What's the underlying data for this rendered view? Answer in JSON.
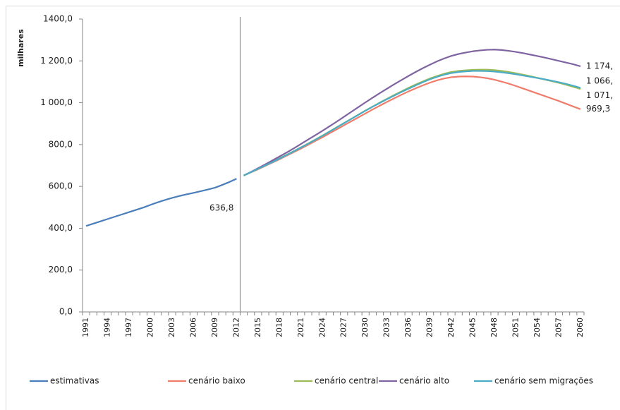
{
  "chart_data": {
    "type": "line",
    "y_label": "milhares",
    "categories": [
      1991,
      null,
      null,
      1994,
      null,
      null,
      1997,
      null,
      null,
      2000,
      null,
      null,
      2003,
      null,
      null,
      2006,
      null,
      null,
      2009,
      null,
      null,
      2012,
      null,
      null,
      2015,
      null,
      null,
      2018,
      null,
      null,
      2021,
      null,
      null,
      2024,
      null,
      null,
      2027,
      null,
      null,
      2030,
      null,
      null,
      2033,
      null,
      null,
      2036,
      null,
      null,
      2039,
      null,
      null,
      2042,
      null,
      null,
      2045,
      null,
      null,
      2048,
      null,
      null,
      2051,
      null,
      null,
      2054,
      null,
      null,
      2057,
      null,
      null,
      2060
    ],
    "ylim": [
      0,
      1400
    ],
    "yticks": [
      {
        "value": 0,
        "label": "0,0"
      },
      {
        "value": 200,
        "label": "200,0"
      },
      {
        "value": 400,
        "label": "400,0"
      },
      {
        "value": 600,
        "label": "600,0"
      },
      {
        "value": 800,
        "label": "800,0"
      },
      {
        "value": 1000,
        "label": "1 000,0"
      },
      {
        "value": 1200,
        "label": "1 200,0"
      },
      {
        "value": 1400,
        "label": "1400,0"
      }
    ],
    "legend": "bottom",
    "series": [
      {
        "name": "estimativas",
        "color": "#4a7ebb",
        "values": [
          411,
          422,
          433,
          444,
          455,
          466,
          477,
          488,
          499,
          512,
          524,
          535,
          545,
          554,
          562,
          569,
          577,
          585,
          594,
          607,
          621,
          636.8,
          null,
          null,
          null,
          null,
          null,
          null,
          null,
          null,
          null,
          null,
          null,
          null,
          null,
          null,
          null,
          null,
          null,
          null,
          null,
          null,
          null,
          null,
          null,
          null,
          null,
          null,
          null,
          null,
          null,
          null,
          null,
          null,
          null,
          null,
          null,
          null,
          null,
          null,
          null,
          null,
          null,
          null,
          null,
          null,
          null,
          null,
          null,
          null
        ],
        "value_labels": [
          null,
          null,
          null,
          null,
          null,
          null,
          null,
          null,
          null,
          null,
          null,
          null,
          null,
          null,
          null,
          null,
          null,
          null,
          null,
          null,
          null,
          "636,8",
          null,
          null,
          null,
          null,
          null,
          null,
          null,
          null,
          null,
          null,
          null,
          null,
          null,
          null,
          null,
          null,
          null,
          null,
          null,
          null,
          null,
          null,
          null,
          null,
          null,
          null,
          null,
          null,
          null,
          null,
          null,
          null,
          null,
          null,
          null,
          null,
          null,
          null,
          null,
          null,
          null,
          null,
          null,
          null,
          null,
          null,
          null,
          null
        ]
      },
      {
        "name": "cenário baixo",
        "color": "#f07c6c",
        "values": [
          null,
          null,
          null,
          null,
          null,
          null,
          null,
          null,
          null,
          null,
          null,
          null,
          null,
          null,
          null,
          null,
          null,
          null,
          null,
          null,
          null,
          null,
          652,
          667,
          682,
          698,
          714,
          730,
          747,
          764,
          781,
          799,
          817,
          835,
          854,
          873,
          892,
          911,
          930,
          949,
          968,
          986,
          1004,
          1021,
          1038,
          1054,
          1069,
          1083,
          1096,
          1107,
          1116,
          1122,
          1125,
          1126,
          1125,
          1122,
          1117,
          1110,
          1101,
          1091,
          1080,
          1068,
          1056,
          1044,
          1032,
          1020,
          1008,
          995,
          982,
          969.3
        ],
        "value_labels": [
          null,
          null,
          null,
          null,
          null,
          null,
          null,
          null,
          null,
          null,
          null,
          null,
          null,
          null,
          null,
          null,
          null,
          null,
          null,
          null,
          null,
          null,
          null,
          null,
          null,
          null,
          null,
          null,
          null,
          null,
          null,
          null,
          null,
          null,
          null,
          null,
          null,
          null,
          null,
          null,
          null,
          null,
          null,
          null,
          null,
          null,
          null,
          null,
          null,
          null,
          null,
          null,
          null,
          null,
          null,
          null,
          null,
          null,
          null,
          null,
          null,
          null,
          null,
          null,
          null,
          null,
          null,
          null,
          null,
          "969,3"
        ]
      },
      {
        "name": "cenário central",
        "color": "#9bbb59",
        "values": [
          null,
          null,
          null,
          null,
          null,
          null,
          null,
          null,
          null,
          null,
          null,
          null,
          null,
          null,
          null,
          null,
          null,
          null,
          null,
          null,
          null,
          null,
          652,
          668,
          684,
          700,
          717,
          734,
          751,
          769,
          787,
          805,
          824,
          843,
          863,
          883,
          903,
          923,
          943,
          963,
          982,
          1001,
          1019,
          1037,
          1054,
          1071,
          1087,
          1102,
          1116,
          1128,
          1139,
          1147,
          1152,
          1155,
          1157,
          1158,
          1158,
          1156,
          1152,
          1147,
          1141,
          1134,
          1127,
          1119,
          1111,
          1103,
          1095,
          1086,
          1076,
          1066
        ],
        "value_labels": [
          null,
          null,
          null,
          null,
          null,
          null,
          null,
          null,
          null,
          null,
          null,
          null,
          null,
          null,
          null,
          null,
          null,
          null,
          null,
          null,
          null,
          null,
          null,
          null,
          null,
          null,
          null,
          null,
          null,
          null,
          null,
          null,
          null,
          null,
          null,
          null,
          null,
          null,
          null,
          null,
          null,
          null,
          null,
          null,
          null,
          null,
          null,
          null,
          null,
          null,
          null,
          null,
          null,
          null,
          null,
          null,
          null,
          null,
          null,
          null,
          null,
          null,
          null,
          null,
          null,
          null,
          null,
          null,
          null,
          "1 066,"
        ]
      },
      {
        "name": "cenário alto",
        "color": "#8064a2",
        "values": [
          null,
          null,
          null,
          null,
          null,
          null,
          null,
          null,
          null,
          null,
          null,
          null,
          null,
          null,
          null,
          null,
          null,
          null,
          null,
          null,
          null,
          null,
          652,
          669,
          687,
          705,
          724,
          743,
          762,
          782,
          803,
          824,
          845,
          866,
          888,
          910,
          933,
          956,
          979,
          1002,
          1024,
          1046,
          1067,
          1088,
          1108,
          1128,
          1147,
          1165,
          1182,
          1198,
          1212,
          1224,
          1233,
          1240,
          1246,
          1250,
          1253,
          1254,
          1252,
          1248,
          1243,
          1237,
          1230,
          1223,
          1216,
          1208,
          1200,
          1192,
          1184,
          1174
        ],
        "value_labels": [
          null,
          null,
          null,
          null,
          null,
          null,
          null,
          null,
          null,
          null,
          null,
          null,
          null,
          null,
          null,
          null,
          null,
          null,
          null,
          null,
          null,
          null,
          null,
          null,
          null,
          null,
          null,
          null,
          null,
          null,
          null,
          null,
          null,
          null,
          null,
          null,
          null,
          null,
          null,
          null,
          null,
          null,
          null,
          null,
          null,
          null,
          null,
          null,
          null,
          null,
          null,
          null,
          null,
          null,
          null,
          null,
          null,
          null,
          null,
          null,
          null,
          null,
          null,
          null,
          null,
          null,
          null,
          null,
          null,
          "1 174,"
        ]
      },
      {
        "name": "cenário sem migrações",
        "color": "#4bacc6",
        "values": [
          null,
          null,
          null,
          null,
          null,
          null,
          null,
          null,
          null,
          null,
          null,
          null,
          null,
          null,
          null,
          null,
          null,
          null,
          null,
          null,
          null,
          null,
          652,
          668,
          684,
          700,
          716,
          733,
          750,
          768,
          786,
          804,
          823,
          842,
          862,
          882,
          902,
          922,
          942,
          962,
          981,
          999,
          1017,
          1034,
          1051,
          1067,
          1083,
          1098,
          1112,
          1124,
          1134,
          1142,
          1147,
          1150,
          1152,
          1152,
          1151,
          1149,
          1145,
          1141,
          1136,
          1130,
          1124,
          1118,
          1112,
          1105,
          1098,
          1090,
          1081,
          1071
        ],
        "value_labels": [
          null,
          null,
          null,
          null,
          null,
          null,
          null,
          null,
          null,
          null,
          null,
          null,
          null,
          null,
          null,
          null,
          null,
          null,
          null,
          null,
          null,
          null,
          null,
          null,
          null,
          null,
          null,
          null,
          null,
          null,
          null,
          null,
          null,
          null,
          null,
          null,
          null,
          null,
          null,
          null,
          null,
          null,
          null,
          null,
          null,
          null,
          null,
          null,
          null,
          null,
          null,
          null,
          null,
          null,
          null,
          null,
          null,
          null,
          null,
          null,
          null,
          null,
          null,
          null,
          null,
          null,
          null,
          null,
          null,
          "1 071,"
        ]
      }
    ]
  }
}
